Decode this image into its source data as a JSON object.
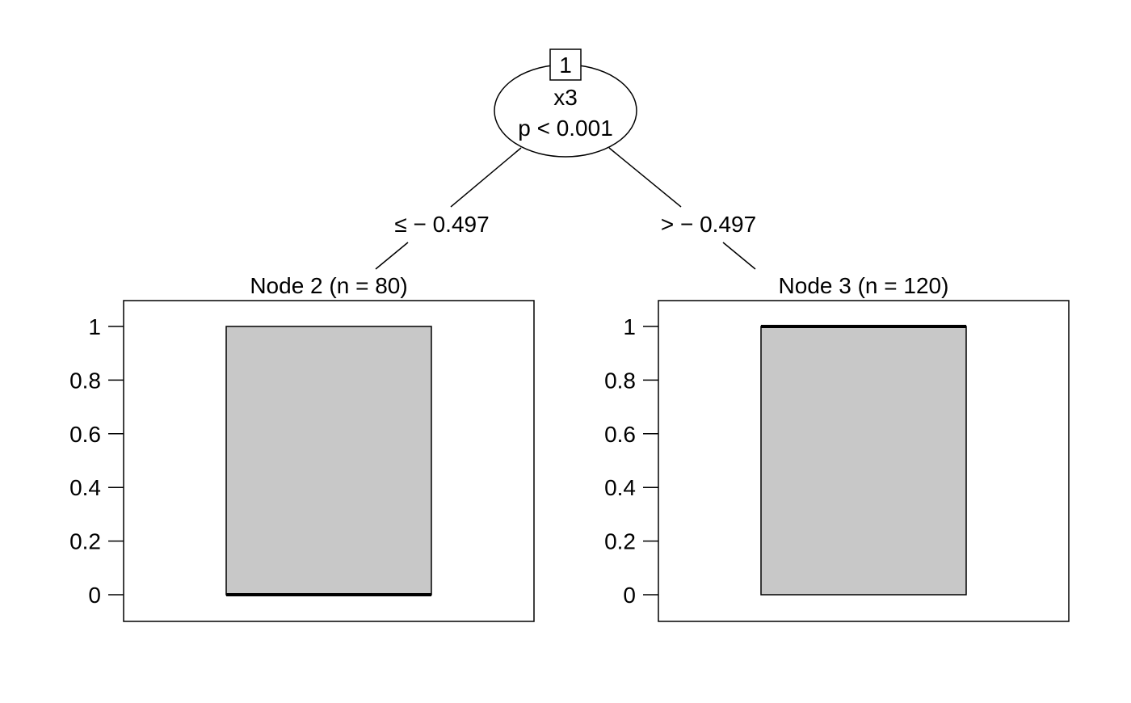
{
  "root": {
    "id_label": "1",
    "variable": "x3",
    "p_value": "p < 0.001"
  },
  "edges": {
    "left_label": "≤ − 0.497",
    "right_label": "> − 0.497"
  },
  "y_ticks": [
    "0",
    "0.2",
    "0.4",
    "0.6",
    "0.8",
    "1"
  ],
  "chart_data": [
    {
      "type": "bar",
      "title": "Node 2 (n = 80)",
      "ylim": [
        0,
        1
      ],
      "yticks": [
        0,
        0.2,
        0.4,
        0.6,
        0.8,
        1
      ],
      "box": {
        "lower": 0,
        "upper": 1,
        "median": 0
      }
    },
    {
      "type": "bar",
      "title": "Node 3 (n = 120)",
      "ylim": [
        0,
        1
      ],
      "yticks": [
        0,
        0.2,
        0.4,
        0.6,
        0.8,
        1
      ],
      "box": {
        "lower": 0,
        "upper": 1,
        "median": 1
      }
    }
  ],
  "colors": {
    "box_fill": "#c8c8c8",
    "line": "#000000"
  }
}
